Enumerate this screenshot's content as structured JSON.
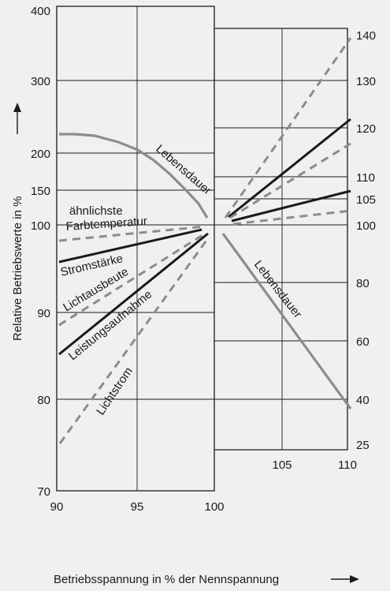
{
  "chart_data": [
    {
      "type": "line",
      "panel": "left",
      "xlabel": "Betriebsspannung in % der Nennspannung",
      "ylabel": "Relative Betriebswerte in %",
      "xticks": [
        "90",
        "95",
        "100"
      ],
      "yticks": [
        "70",
        "80",
        "90",
        "100",
        "150",
        "200",
        "300",
        "400"
      ],
      "xlim": [
        90,
        100
      ],
      "series": [
        {
          "name": "Lebensdauer",
          "style": "solid",
          "color": "#8c8c8c",
          "points": [
            [
              90,
              228
            ],
            [
              91,
              228
            ],
            [
              92,
              226
            ],
            [
              93,
              218
            ],
            [
              94,
              205
            ],
            [
              95,
              190
            ],
            [
              96,
              170
            ],
            [
              97,
              150
            ],
            [
              98,
              130
            ],
            [
              99.5,
              109
            ]
          ]
        },
        {
          "name": "ähnlichste Farbtemperatur",
          "style": "dashed",
          "color": "#8c8c8c",
          "points": [
            [
              90,
              98.5
            ],
            [
              99.7,
              100
            ]
          ]
        },
        {
          "name": "Stromstärke",
          "style": "solid",
          "color": "#1a1a1a",
          "points": [
            [
              90,
              95.5
            ],
            [
              99,
              99.6
            ]
          ]
        },
        {
          "name": "Lichtausbeute",
          "style": "dashed",
          "color": "#8c8c8c",
          "points": [
            [
              90,
              88.5
            ],
            [
              99.7,
              99.6
            ]
          ]
        },
        {
          "name": "Leistungsaufnahme",
          "style": "solid",
          "color": "#1a1a1a",
          "points": [
            [
              90,
              85.5
            ],
            [
              99.5,
              99
            ]
          ]
        },
        {
          "name": "Lichtstrom",
          "style": "dashed",
          "color": "#8c8c8c",
          "points": [
            [
              90,
              75.5
            ],
            [
              99.7,
              99
            ]
          ]
        }
      ]
    },
    {
      "type": "line",
      "panel": "right",
      "xticks": [
        "105",
        "110"
      ],
      "yticks": [
        "25",
        "40",
        "60",
        "80",
        "100",
        "105",
        "110",
        "120",
        "130",
        "140"
      ],
      "xlim": [
        100,
        110
      ],
      "series": [
        {
          "name": "Lebensdauer",
          "style": "solid",
          "color": "#8c8c8c",
          "points": [
            [
              100.2,
              98.5
            ],
            [
              110,
              37
            ]
          ]
        },
        {
          "name": "Lichtstrom",
          "style": "dashed",
          "color": "#8c8c8c",
          "points": [
            [
              100.3,
              101
            ],
            [
              110,
              140
            ]
          ]
        },
        {
          "name": "Leistungsaufnahme",
          "style": "solid",
          "color": "#1a1a1a",
          "points": [
            [
              100.5,
              101.5
            ],
            [
              110,
              123
            ]
          ]
        },
        {
          "name": "Lichtausbeute",
          "style": "dashed",
          "color": "#8c8c8c",
          "points": [
            [
              100.5,
              101
            ],
            [
              110,
              117
            ]
          ]
        },
        {
          "name": "Stromstärke",
          "style": "solid",
          "color": "#1a1a1a",
          "points": [
            [
              100.5,
              101
            ],
            [
              110,
              107
            ]
          ]
        },
        {
          "name": "ähnlichste Farbtemperatur",
          "style": "dashed",
          "color": "#8c8c8c",
          "points": [
            [
              100.5,
              100.3
            ],
            [
              110,
              102.5
            ]
          ]
        }
      ]
    }
  ],
  "labels": {
    "ylabel": "Relative Betriebswerte in %",
    "xlabel": "Betriebsspannung in % der Nennspannung",
    "lebensdauer_left": "Lebensdauer",
    "lebensdauer_right": "Lebensdauer",
    "farb1": "ähnlichste",
    "farb2": "Farbtemperatur",
    "strom": "Stromstärke",
    "lichtausbeute": "Lichtausbeute",
    "leistung": "Leistungsaufnahme",
    "lichtstrom": "Lichtstrom"
  },
  "colors": {
    "dark": "#1a1a1a",
    "gray": "#8c8c8c",
    "background": "#f0f0f0"
  }
}
